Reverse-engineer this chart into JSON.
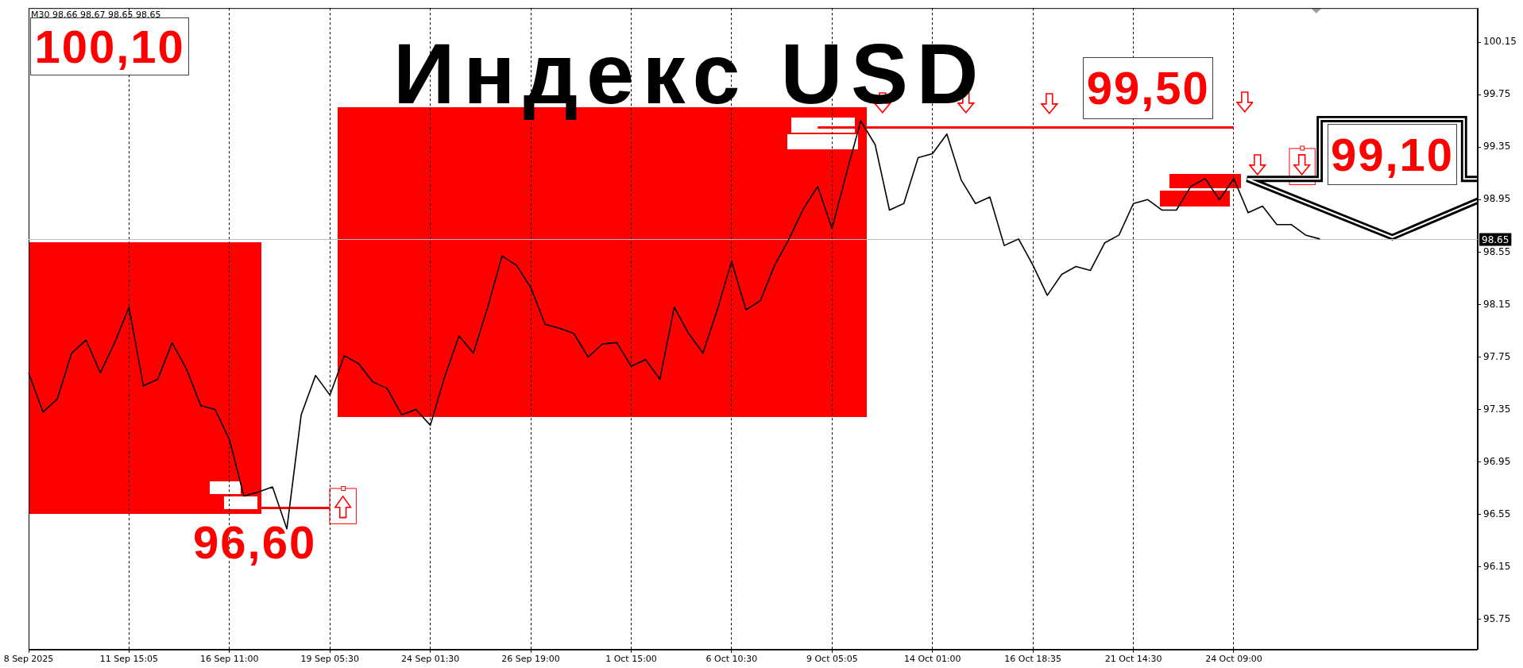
{
  "chart_data": {
    "type": "line",
    "title": "Индекс USD",
    "annotations": [
      "M30 98.66 98.67 98.65 98.65",
      "100,10",
      "99,50",
      "96,60",
      "99,10"
    ],
    "categories": [
      "8 Sep 2025",
      null,
      null,
      null,
      null,
      null,
      null,
      "11 Sep 15:05",
      null,
      null,
      null,
      null,
      null,
      null,
      "16 Sep 11:00",
      null,
      null,
      null,
      null,
      null,
      null,
      "19 Sep 05:30",
      null,
      null,
      null,
      null,
      null,
      null,
      "24 Sep 01:30",
      null,
      null,
      null,
      null,
      null,
      null,
      "26 Sep 19:00",
      null,
      null,
      null,
      null,
      null,
      null,
      "1 Oct 15:00",
      null,
      null,
      null,
      null,
      null,
      null,
      "6 Oct 10:30",
      null,
      null,
      null,
      null,
      null,
      null,
      "9 Oct 05:05",
      null,
      null,
      null,
      null,
      null,
      null,
      "14 Oct 01:00",
      null,
      null,
      null,
      null,
      null,
      null,
      "16 Oct 18:35",
      null,
      null,
      null,
      null,
      null,
      null,
      "21 Oct 14:30",
      null,
      null,
      null,
      null,
      null,
      null,
      "24 Oct 09:00",
      null,
      null,
      null,
      null,
      null,
      null,
      null,
      null,
      null,
      null,
      null,
      null,
      null,
      null,
      null,
      null,
      null
    ],
    "series": [
      {
        "color": "#000000",
        "values": [
          97.63,
          97.33,
          97.43,
          97.78,
          97.88,
          97.63,
          97.86,
          98.13,
          97.53,
          97.58,
          97.86,
          97.66,
          97.38,
          97.35,
          97.12,
          96.69,
          96.72,
          96.76,
          96.44,
          97.31,
          97.61,
          97.46,
          97.76,
          97.7,
          97.56,
          97.51,
          97.31,
          97.35,
          97.23,
          97.6,
          97.91,
          97.78,
          98.13,
          98.52,
          98.45,
          98.28,
          98.0,
          97.97,
          97.93,
          97.75,
          97.85,
          97.86,
          97.68,
          97.73,
          97.58,
          98.13,
          97.93,
          97.78,
          98.11,
          98.48,
          98.11,
          98.18,
          98.45,
          98.65,
          98.88,
          99.05,
          98.73,
          99.15,
          99.55,
          99.37,
          98.87,
          98.92,
          99.27,
          99.3,
          99.45,
          99.1,
          98.92,
          98.97,
          98.6,
          98.65,
          98.45,
          98.22,
          98.38,
          98.44,
          98.41,
          98.62,
          98.68,
          98.92,
          98.95,
          98.87,
          98.87,
          99.05,
          99.11,
          98.95,
          99.11,
          98.85,
          98.9,
          98.76,
          98.76,
          98.68,
          98.65,
          null,
          null,
          null,
          null,
          null,
          null,
          null,
          null,
          null,
          null,
          null
        ]
      },
      {
        "color": "#ff0000",
        "values": [
          null,
          null,
          null,
          null,
          null,
          null,
          null,
          null,
          null,
          null,
          null,
          null,
          null,
          null,
          null,
          null,
          96.6,
          96.6,
          96.6,
          96.6,
          96.6,
          96.6,
          null,
          null,
          null,
          null,
          null,
          null,
          null,
          null,
          null,
          null,
          null,
          null,
          null,
          null,
          null,
          null,
          null,
          null,
          null,
          null,
          null,
          null,
          null,
          null,
          null,
          null,
          null,
          null,
          null,
          null,
          null,
          null,
          null,
          null,
          null,
          null,
          null,
          null,
          null,
          null,
          null,
          null,
          null,
          null,
          null,
          null,
          null,
          null,
          null,
          null,
          null,
          null,
          null,
          null,
          null,
          null,
          null,
          null,
          null,
          null,
          null,
          null,
          null,
          null,
          null,
          null,
          null,
          null,
          null,
          null,
          null,
          null,
          null,
          null,
          null,
          null,
          null,
          null,
          null,
          null
        ]
      },
      {
        "color": "#ff0000",
        "values": [
          null,
          null,
          null,
          null,
          null,
          null,
          null,
          null,
          null,
          null,
          null,
          null,
          null,
          null,
          null,
          null,
          null,
          null,
          null,
          null,
          null,
          null,
          null,
          null,
          null,
          null,
          null,
          null,
          null,
          null,
          null,
          null,
          null,
          null,
          null,
          null,
          null,
          null,
          null,
          null,
          null,
          null,
          null,
          null,
          null,
          null,
          null,
          null,
          null,
          null,
          null,
          null,
          null,
          null,
          null,
          99.5,
          99.5,
          99.5,
          99.5,
          99.5,
          99.5,
          99.5,
          99.5,
          99.5,
          99.5,
          99.5,
          99.5,
          99.5,
          99.5,
          99.5,
          99.5,
          99.5,
          99.5,
          99.5,
          99.5,
          99.5,
          99.5,
          99.5,
          99.5,
          99.5,
          99.5,
          99.5,
          99.5,
          99.5,
          99.5,
          null,
          null,
          null,
          null,
          null,
          null,
          null,
          null,
          null,
          null,
          null,
          null,
          null,
          null,
          null,
          null,
          null
        ]
      }
    ],
    "ylim": [
      95.52,
      100.41
    ],
    "yticks": [
      95.75,
      96.15,
      96.55,
      96.95,
      97.35,
      97.75,
      98.15,
      98.55,
      98.95,
      99.35,
      99.75,
      100.15
    ],
    "ref_lines": [
      {
        "axis": "y",
        "value": 98.65,
        "label": "98.65",
        "color": "#c0c0c0"
      }
    ],
    "grid": "x",
    "legend": false,
    "marker": "none"
  }
}
